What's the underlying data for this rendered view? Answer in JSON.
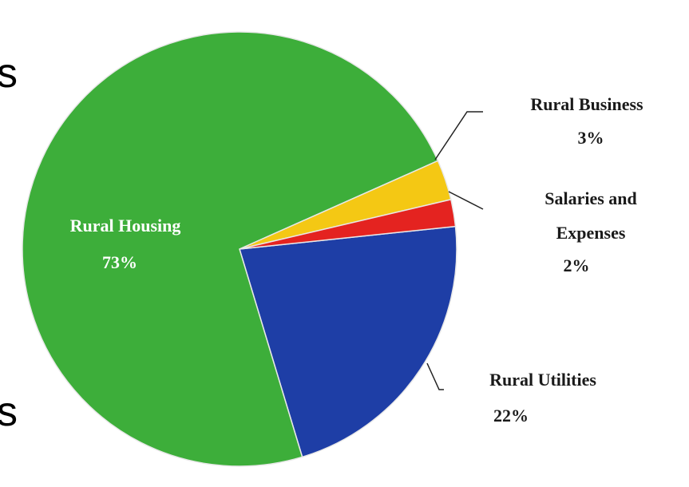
{
  "chart_data": {
    "type": "pie",
    "categories": [
      "Rural Utilities",
      "Rural Housing",
      "Rural Business",
      "Salaries and Expenses"
    ],
    "values": [
      22,
      73,
      3,
      2
    ],
    "value_labels": [
      "22%",
      "73%",
      "3%",
      "2%"
    ],
    "colors": [
      "#1e3ea6",
      "#3dae3a",
      "#f4c814",
      "#e42320"
    ]
  },
  "side_text": [
    "s",
    "s"
  ]
}
